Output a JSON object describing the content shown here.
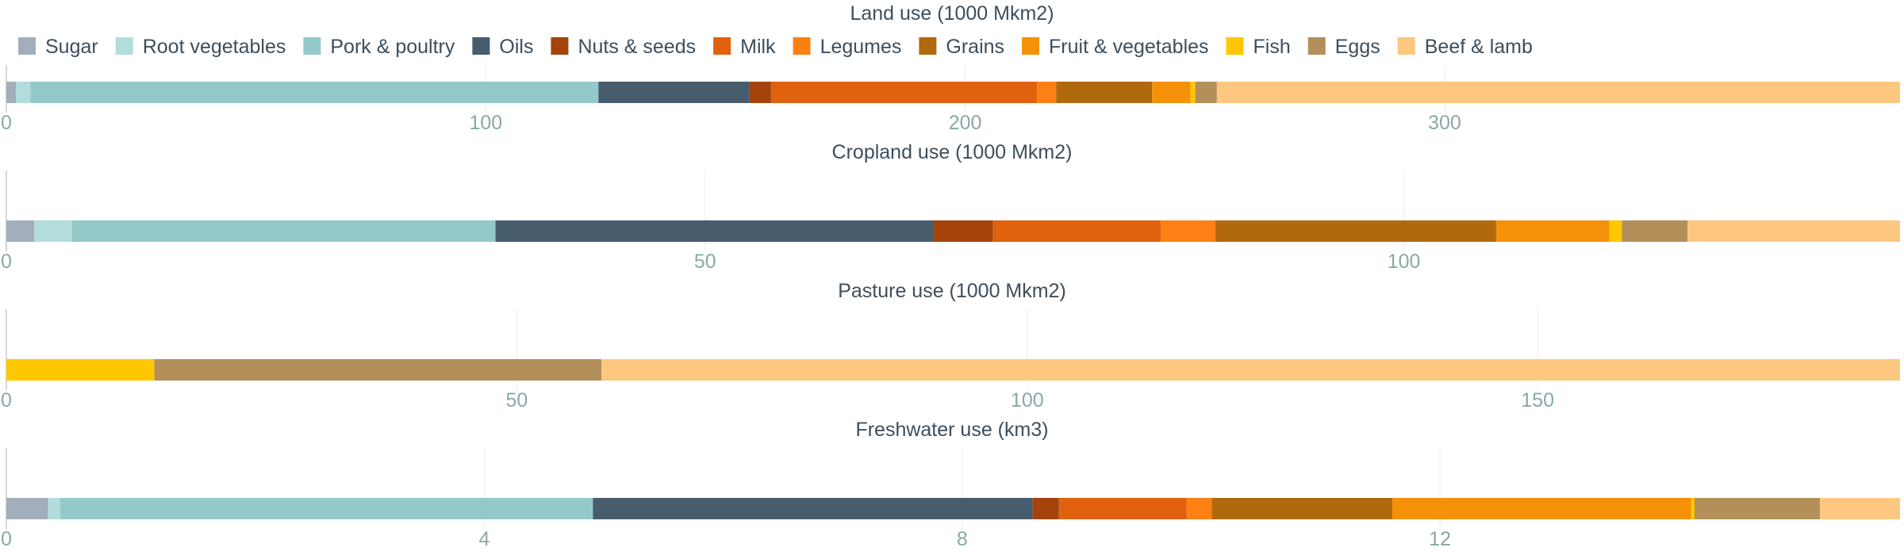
{
  "chart_data": {
    "type": "bar",
    "orientation": "horizontal",
    "stacked": true,
    "legend_position": "top",
    "grid": true,
    "legend": [
      {
        "name": "Sugar",
        "color": "#a2aebb"
      },
      {
        "name": "Root vegetables",
        "color": "#b3dcdc"
      },
      {
        "name": "Pork & poultry",
        "color": "#94c9c9"
      },
      {
        "name": "Oils",
        "color": "#475c6d"
      },
      {
        "name": "Nuts & seeds",
        "color": "#a3430b"
      },
      {
        "name": "Milk",
        "color": "#e0610e"
      },
      {
        "name": "Legumes",
        "color": "#fd8014"
      },
      {
        "name": "Grains",
        "color": "#b1690e"
      },
      {
        "name": "Fruit & vegetables",
        "color": "#f49108"
      },
      {
        "name": "Fish",
        "color": "#ffc700"
      },
      {
        "name": "Eggs",
        "color": "#b38f5a"
      },
      {
        "name": "Beef & lamb",
        "color": "#fdc780"
      }
    ],
    "panels": [
      {
        "title": "Land use (1000 Mkm2)",
        "xlim": [
          0,
          395
        ],
        "ticks": [
          0,
          100,
          200,
          300
        ],
        "tick_labels": [
          "0",
          "100",
          "200",
          "300"
        ],
        "segments": [
          {
            "series": "Sugar",
            "value": 2
          },
          {
            "series": "Root vegetables",
            "value": 3
          },
          {
            "series": "Pork & poultry",
            "value": 118.5
          },
          {
            "series": "Oils",
            "value": 31.5
          },
          {
            "series": "Nuts & seeds",
            "value": 4.5
          },
          {
            "series": "Milk",
            "value": 55.5
          },
          {
            "series": "Legumes",
            "value": 4
          },
          {
            "series": "Grains",
            "value": 20
          },
          {
            "series": "Fruit & vegetables",
            "value": 8
          },
          {
            "series": "Fish",
            "value": 1
          },
          {
            "series": "Eggs",
            "value": 4.5
          },
          {
            "series": "Beef & lamb",
            "value": 142.5
          }
        ]
      },
      {
        "title": "Cropland use (1000 Mkm2)",
        "xlim": [
          0,
          135.5
        ],
        "ticks": [
          0,
          50,
          100
        ],
        "tick_labels": [
          "0",
          "50",
          "100"
        ],
        "segments": [
          {
            "series": "Sugar",
            "value": 2
          },
          {
            "series": "Root vegetables",
            "value": 2.7
          },
          {
            "series": "Pork & poultry",
            "value": 30.3
          },
          {
            "series": "Oils",
            "value": 31.3
          },
          {
            "series": "Nuts & seeds",
            "value": 4.3
          },
          {
            "series": "Milk",
            "value": 12
          },
          {
            "series": "Legumes",
            "value": 3.9
          },
          {
            "series": "Grains",
            "value": 20.1
          },
          {
            "series": "Fruit & vegetables",
            "value": 8.1
          },
          {
            "series": "Fish",
            "value": 0.9
          },
          {
            "series": "Eggs",
            "value": 4.7
          },
          {
            "series": "Beef & lamb",
            "value": 15.2
          }
        ]
      },
      {
        "title": "Pasture use (1000 Mkm2)",
        "xlim": [
          0,
          185.5
        ],
        "ticks": [
          0,
          50,
          100,
          150
        ],
        "tick_labels": [
          "0",
          "50",
          "100",
          "150"
        ],
        "segments": [
          {
            "series": "Fish",
            "value": 14.5
          },
          {
            "series": "Eggs",
            "value": 43.8
          },
          {
            "series": "Beef & lamb",
            "value": 127.2
          }
        ]
      },
      {
        "title": "Freshwater use (km3)",
        "xlim": [
          0,
          15.85
        ],
        "ticks": [
          0,
          4,
          8,
          12
        ],
        "tick_labels": [
          "0",
          "4",
          "8",
          "12"
        ],
        "segments": [
          {
            "series": "Sugar",
            "value": 0.35
          },
          {
            "series": "Root vegetables",
            "value": 0.1
          },
          {
            "series": "Pork & poultry",
            "value": 4.46
          },
          {
            "series": "Oils",
            "value": 3.68
          },
          {
            "series": "Nuts & seeds",
            "value": 0.22
          },
          {
            "series": "Milk",
            "value": 1.07
          },
          {
            "series": "Legumes",
            "value": 0.21
          },
          {
            "series": "Grains",
            "value": 1.51
          },
          {
            "series": "Fruit & vegetables",
            "value": 2.5
          },
          {
            "series": "Fish",
            "value": 0.03
          },
          {
            "series": "Eggs",
            "value": 1.05
          },
          {
            "series": "Beef & lamb",
            "value": 0.67
          }
        ]
      }
    ]
  }
}
